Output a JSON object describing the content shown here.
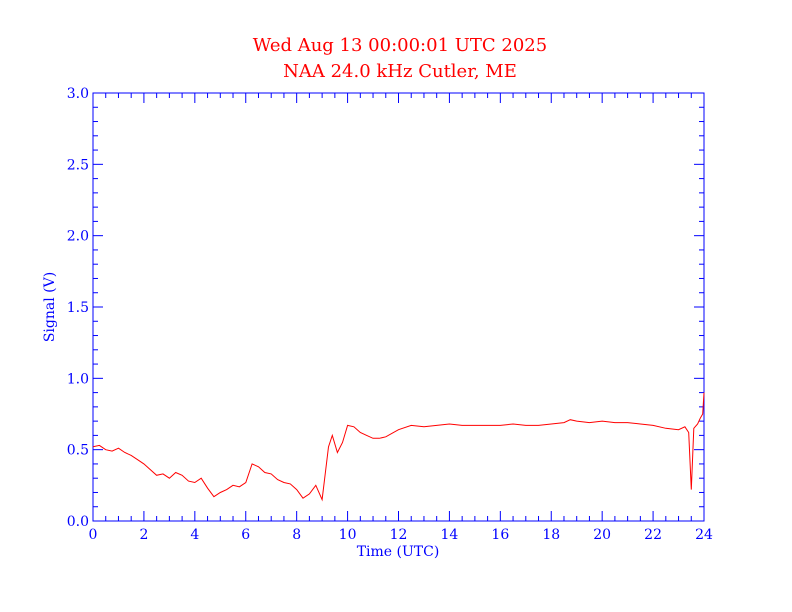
{
  "colors": {
    "title": "#ff0000",
    "axes": "#0000ff",
    "trace": "#ff0000",
    "background": "#ffffff"
  },
  "chart_data": {
    "type": "line",
    "title": "Wed Aug 13 00:00:01 UTC 2025",
    "subtitle": "NAA 24.0 kHz Cutler, ME",
    "xlabel": "Time (UTC)",
    "ylabel": "Signal (V)",
    "xlim": [
      0,
      24
    ],
    "ylim": [
      0.0,
      3.0
    ],
    "xticks": [
      "0",
      "2",
      "4",
      "6",
      "8",
      "10",
      "12",
      "14",
      "16",
      "18",
      "20",
      "22",
      "24"
    ],
    "yticks": [
      "0.0",
      "0.5",
      "1.0",
      "1.5",
      "2.0",
      "2.5",
      "3.0"
    ],
    "grid": false,
    "series": [
      {
        "x": [
          0.0,
          0.25,
          0.5,
          0.75,
          1.0,
          1.25,
          1.5,
          1.75,
          2.0,
          2.25,
          2.5,
          2.75,
          3.0,
          3.25,
          3.5,
          3.75,
          4.0,
          4.25,
          4.5,
          4.75,
          5.0,
          5.25,
          5.5,
          5.75,
          6.0,
          6.25,
          6.5,
          6.75,
          7.0,
          7.25,
          7.5,
          7.75,
          8.0,
          8.25,
          8.5,
          8.75,
          9.0,
          9.1,
          9.25,
          9.4,
          9.6,
          9.8,
          10.0,
          10.25,
          10.5,
          10.75,
          11.0,
          11.25,
          11.5,
          12.0,
          12.5,
          13.0,
          13.5,
          14.0,
          14.5,
          15.0,
          15.5,
          16.0,
          16.5,
          17.0,
          17.5,
          18.0,
          18.5,
          18.75,
          19.0,
          19.5,
          20.0,
          20.5,
          21.0,
          21.5,
          22.0,
          22.5,
          23.0,
          23.25,
          23.4,
          23.5,
          23.6,
          23.75,
          23.85,
          23.95,
          24.0
        ],
        "y": [
          0.52,
          0.53,
          0.5,
          0.49,
          0.51,
          0.48,
          0.46,
          0.43,
          0.4,
          0.36,
          0.32,
          0.33,
          0.3,
          0.34,
          0.32,
          0.28,
          0.27,
          0.3,
          0.23,
          0.17,
          0.2,
          0.22,
          0.25,
          0.24,
          0.27,
          0.4,
          0.38,
          0.34,
          0.33,
          0.29,
          0.27,
          0.26,
          0.22,
          0.16,
          0.19,
          0.25,
          0.15,
          0.3,
          0.52,
          0.6,
          0.48,
          0.55,
          0.67,
          0.66,
          0.62,
          0.6,
          0.58,
          0.58,
          0.59,
          0.64,
          0.67,
          0.66,
          0.67,
          0.68,
          0.67,
          0.67,
          0.67,
          0.67,
          0.68,
          0.67,
          0.67,
          0.68,
          0.69,
          0.71,
          0.7,
          0.69,
          0.7,
          0.69,
          0.69,
          0.68,
          0.67,
          0.65,
          0.64,
          0.66,
          0.62,
          0.22,
          0.65,
          0.68,
          0.72,
          0.75,
          0.9
        ]
      }
    ]
  }
}
